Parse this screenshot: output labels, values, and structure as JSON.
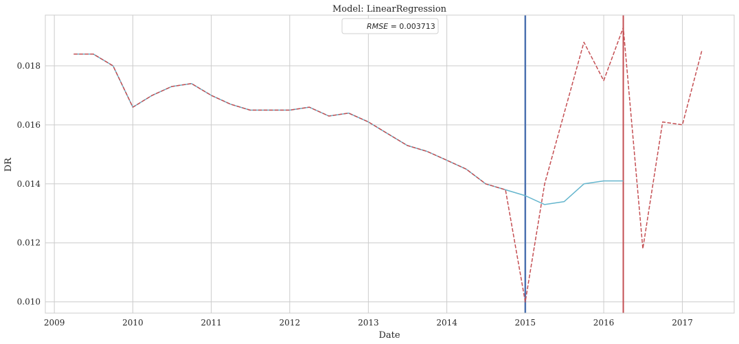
{
  "chart_data": {
    "type": "line",
    "title": "Model: LinearRegression",
    "xlabel": "Date",
    "ylabel": "DR",
    "xlim": [
      "2008-11-20",
      "2017-08-30"
    ],
    "ylim": [
      0.00962,
      0.01972
    ],
    "grid": true,
    "x_ticks": [
      "2009",
      "2010",
      "2011",
      "2012",
      "2013",
      "2014",
      "2015",
      "2016",
      "2017"
    ],
    "y_ticks": [
      "0.010",
      "0.012",
      "0.014",
      "0.016",
      "0.018"
    ],
    "legend": {
      "placement": "top-center",
      "label_var": "RMSE",
      "label_eq": " = 0.003713"
    },
    "vlines": [
      {
        "x": "2015-01-01",
        "color": "#4c72b0"
      },
      {
        "x": "2016-04-01",
        "color": "#c44e52"
      }
    ],
    "series": [
      {
        "style": "solid",
        "color": "#64b5cd",
        "x": [
          "2009-04-01",
          "2009-07-01",
          "2009-10-01",
          "2010-01-01",
          "2010-04-01",
          "2010-07-01",
          "2010-10-01",
          "2011-01-01",
          "2011-04-01",
          "2011-07-01",
          "2011-10-01",
          "2012-01-01",
          "2012-04-01",
          "2012-07-01",
          "2012-10-01",
          "2013-01-01",
          "2013-04-01",
          "2013-07-01",
          "2013-10-01",
          "2014-01-01",
          "2014-04-01",
          "2014-07-01",
          "2014-10-01",
          "2015-01-01",
          "2015-04-01",
          "2015-07-01",
          "2015-10-01",
          "2016-01-01",
          "2016-04-01"
        ],
        "y": [
          0.0184,
          0.0184,
          0.018,
          0.0166,
          0.017,
          0.0173,
          0.0174,
          0.017,
          0.0167,
          0.0165,
          0.0165,
          0.0165,
          0.0166,
          0.0163,
          0.0164,
          0.0161,
          0.0157,
          0.0153,
          0.0151,
          0.0148,
          0.0145,
          0.014,
          0.0138,
          0.0136,
          0.0133,
          0.0134,
          0.014,
          0.0141,
          0.0141
        ]
      },
      {
        "style": "dashed",
        "color": "#c44e52",
        "x": [
          "2009-04-01",
          "2009-07-01",
          "2009-10-01",
          "2010-01-01",
          "2010-04-01",
          "2010-07-01",
          "2010-10-01",
          "2011-01-01",
          "2011-04-01",
          "2011-07-01",
          "2011-10-01",
          "2012-01-01",
          "2012-04-01",
          "2012-07-01",
          "2012-10-01",
          "2013-01-01",
          "2013-04-01",
          "2013-07-01",
          "2013-10-01",
          "2014-01-01",
          "2014-04-01",
          "2014-07-01",
          "2014-10-01",
          "2015-01-01",
          "2015-04-01",
          "2015-07-01",
          "2015-10-01",
          "2016-01-01",
          "2016-04-01",
          "2016-07-01",
          "2016-10-01",
          "2017-01-01",
          "2017-04-01"
        ],
        "y": [
          0.0184,
          0.0184,
          0.018,
          0.0166,
          0.017,
          0.0173,
          0.0174,
          0.017,
          0.0167,
          0.0165,
          0.0165,
          0.0165,
          0.0166,
          0.0163,
          0.0164,
          0.0161,
          0.0157,
          0.0153,
          0.0151,
          0.0148,
          0.0145,
          0.014,
          0.0138,
          0.01,
          0.014,
          0.0164,
          0.0188,
          0.0175,
          0.0193,
          0.0118,
          0.0161,
          0.016,
          0.0185
        ]
      }
    ]
  }
}
